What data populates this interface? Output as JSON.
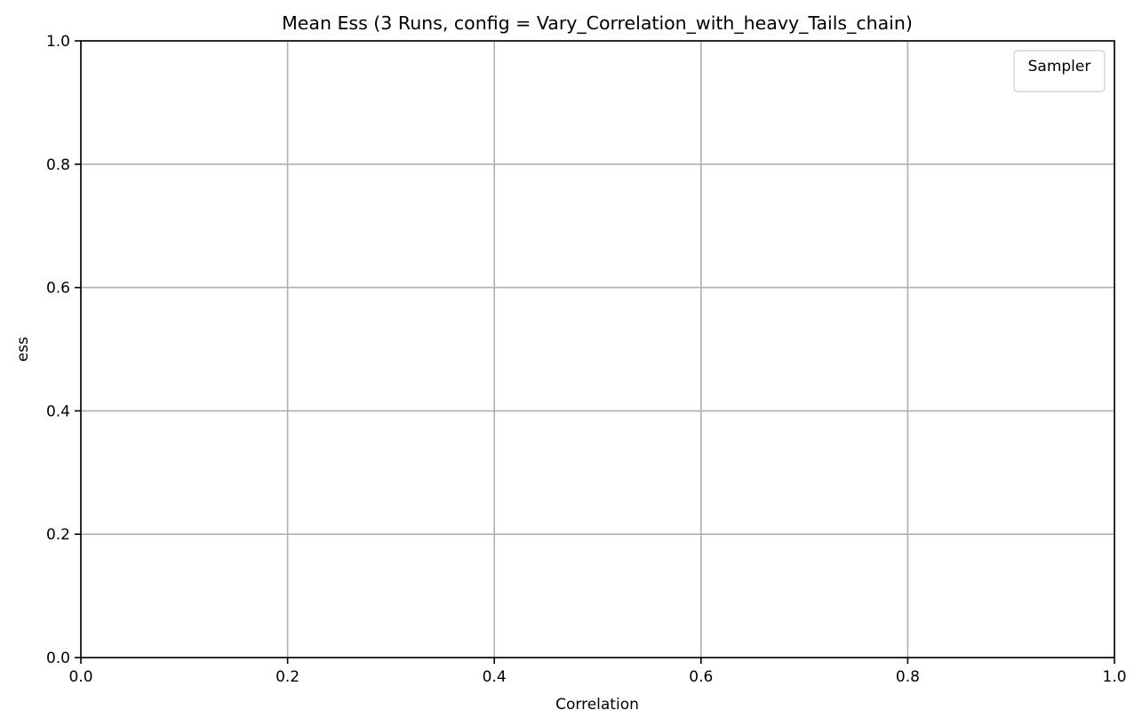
{
  "chart_data": {
    "type": "line",
    "title": "Mean Ess (3 Runs, config = Vary_Correlation_with_heavy_Tails_chain)",
    "xlabel": "Correlation",
    "ylabel": "ess",
    "xlim": [
      0.0,
      1.0
    ],
    "ylim": [
      0.0,
      1.0
    ],
    "xticks": [
      "0.0",
      "0.2",
      "0.4",
      "0.6",
      "0.8",
      "1.0"
    ],
    "yticks": [
      "0.0",
      "0.2",
      "0.4",
      "0.6",
      "0.8",
      "1.0"
    ],
    "grid": true,
    "legend": {
      "title": "Sampler",
      "position": "top-right",
      "entries": []
    },
    "series": []
  },
  "colors": {
    "grid": "#b0b0b0",
    "axis": "#000000",
    "legend_border": "#cccccc",
    "background": "#ffffff"
  }
}
